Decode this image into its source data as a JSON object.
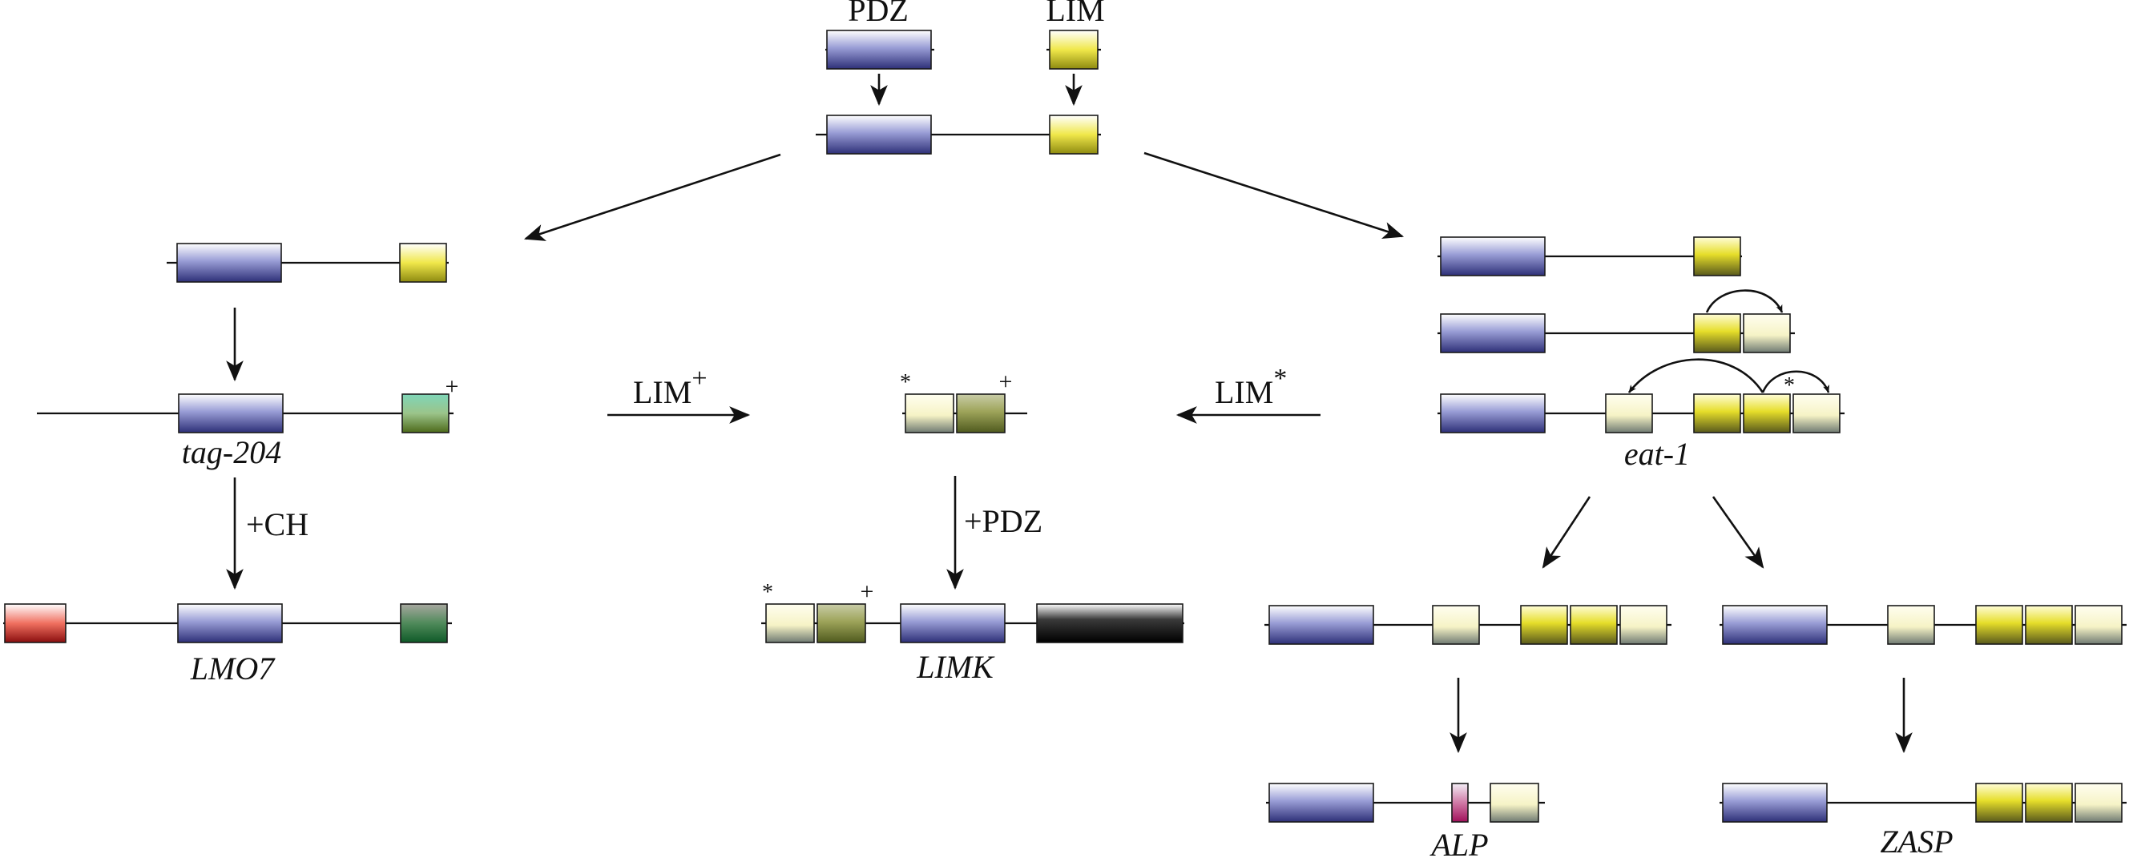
{
  "labels": {
    "pdz_top": "PDZ",
    "lim_top": "LIM",
    "tag204": "tag-204",
    "plus_ch": "+CH",
    "lmo7": "LMO7",
    "lim_plus": "LIM",
    "lim_plus_sup": "+",
    "lim_star": "LIM",
    "lim_star_sup": "*",
    "plus_pdz": "+PDZ",
    "limk": "LIMK",
    "eat1": "eat-1",
    "alp": "ALP",
    "zasp": "ZASP",
    "plus": "+",
    "star": "*"
  },
  "colors": {
    "pdz": "#4a4f9e",
    "lim": "#d4cc1a",
    "lim_pale": "#f5f0b0",
    "lim_plus": "#6e8a3a",
    "green": "#1e6e35",
    "red": "#cc2020",
    "black": "#000000",
    "pink": "#b0246a"
  }
}
